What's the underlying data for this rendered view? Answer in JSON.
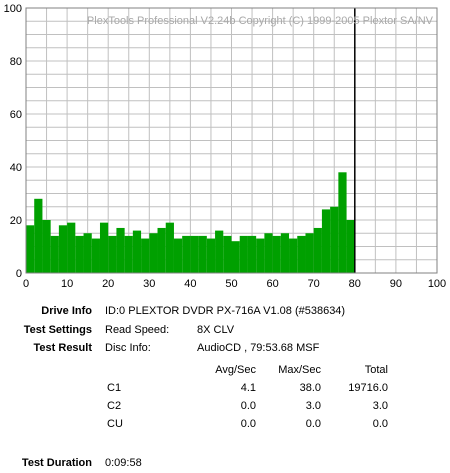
{
  "chart_data": {
    "type": "bar",
    "watermark": "PlexTools Professional V2.24b Copyright (C) 1999-2005 Plextor SA/NV",
    "xlim": [
      0,
      100
    ],
    "ylim": [
      0,
      100
    ],
    "x_ticks": [
      0,
      10,
      20,
      30,
      40,
      50,
      60,
      70,
      80,
      90,
      100
    ],
    "y_ticks": [
      0,
      20,
      40,
      60,
      80,
      100
    ],
    "grid": true,
    "disc_end_marker": 80,
    "colors": {
      "bars": "#00a000",
      "grid": "#c0c0c0",
      "marker": "#000000",
      "watermark": "#a8a8a8"
    },
    "series": [
      {
        "metric": "C1",
        "x": [
          0,
          2,
          4,
          6,
          8,
          10,
          12,
          14,
          16,
          18,
          20,
          22,
          24,
          26,
          28,
          30,
          32,
          34,
          36,
          38,
          40,
          42,
          44,
          46,
          48,
          50,
          52,
          54,
          56,
          58,
          60,
          62,
          64,
          66,
          68,
          70,
          72,
          74,
          76,
          78,
          80
        ],
        "values": [
          18,
          28,
          20,
          14,
          18,
          19,
          14,
          15,
          13,
          19,
          14,
          17,
          14,
          16,
          13,
          15,
          17,
          19,
          13,
          14,
          14,
          14,
          13,
          16,
          14,
          12,
          14,
          14,
          13,
          15,
          14,
          15,
          13,
          14,
          15,
          17,
          24,
          25,
          38,
          20,
          0
        ]
      }
    ]
  },
  "info": {
    "drive_label": "Drive Info",
    "drive_value": "ID:0 PLEXTOR DVDR PX-716A V1.08 (#538634)",
    "settings_label": "Test Settings",
    "settings_key": "Read Speed:",
    "settings_value": "8X CLV",
    "result_label": "Test Result",
    "result_key": "Disc Info:",
    "result_value": "AudioCD , 79:53.68 MSF",
    "duration_label": "Test Duration",
    "duration_value": "0:09:58"
  },
  "stats": {
    "headers": [
      "Avg/Sec",
      "Max/Sec",
      "Total"
    ],
    "rows": [
      {
        "name": "C1",
        "avg": "4.1",
        "max": "38.0",
        "total": "19716.0"
      },
      {
        "name": "C2",
        "avg": "0.0",
        "max": "3.0",
        "total": "3.0"
      },
      {
        "name": "CU",
        "avg": "0.0",
        "max": "0.0",
        "total": "0.0"
      }
    ]
  }
}
